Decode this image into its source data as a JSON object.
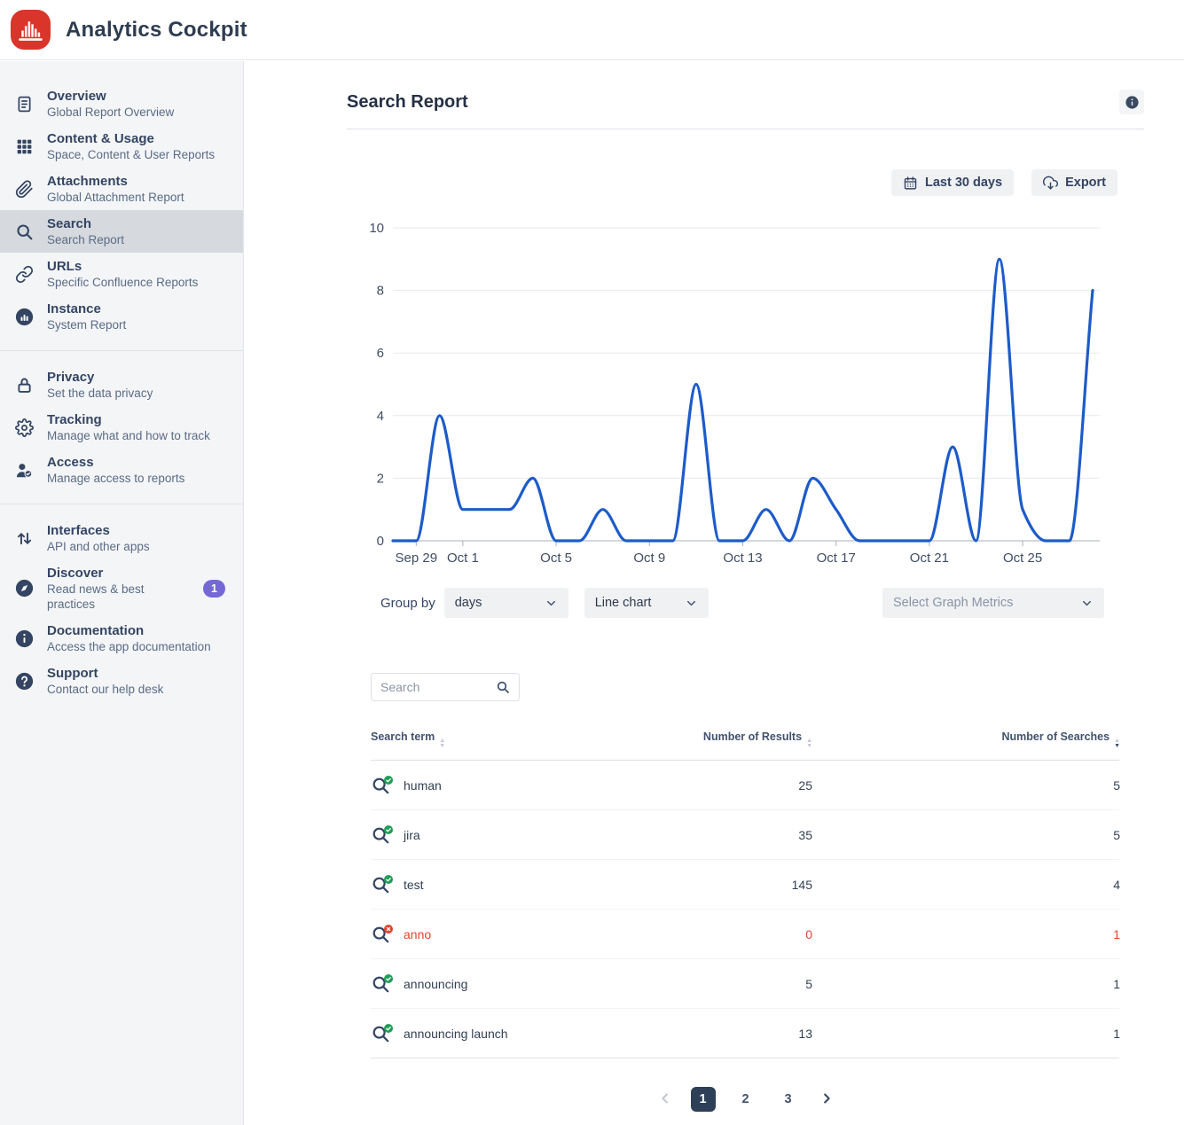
{
  "app": {
    "title": "Analytics Cockpit",
    "logo": "red-histogram"
  },
  "sidebar": {
    "groups": [
      {
        "items": [
          {
            "title": "Overview",
            "subtitle": "Global Report Overview",
            "icon": "document",
            "selected": false
          },
          {
            "title": "Content & Usage",
            "subtitle": "Space, Content & User Reports",
            "icon": "grid",
            "selected": false
          },
          {
            "title": "Attachments",
            "subtitle": "Global Attachment Report",
            "icon": "paperclip",
            "selected": false
          },
          {
            "title": "Search",
            "subtitle": "Search Report",
            "icon": "search",
            "selected": true
          },
          {
            "title": "URLs",
            "subtitle": "Specific Confluence Reports",
            "icon": "link",
            "selected": false
          },
          {
            "title": "Instance",
            "subtitle": "System Report",
            "icon": "instance",
            "selected": false
          }
        ]
      },
      {
        "items": [
          {
            "title": "Privacy",
            "subtitle": "Set the data privacy",
            "icon": "lock",
            "selected": false
          },
          {
            "title": "Tracking",
            "subtitle": "Manage what and how to track",
            "icon": "gear",
            "selected": false
          },
          {
            "title": "Access",
            "subtitle": "Manage access to reports",
            "icon": "user-check",
            "selected": false
          }
        ]
      },
      {
        "items": [
          {
            "title": "Interfaces",
            "subtitle": "API and other apps",
            "icon": "arrows-up-down",
            "selected": false
          },
          {
            "title": "Discover",
            "subtitle": "Read news & best practices",
            "icon": "compass",
            "selected": false,
            "badge": "1"
          },
          {
            "title": "Documentation",
            "subtitle": "Access the app documentation",
            "icon": "info-circle",
            "selected": false
          },
          {
            "title": "Support",
            "subtitle": "Contact our help desk",
            "icon": "question-circle",
            "selected": false
          }
        ]
      }
    ]
  },
  "main": {
    "title": "Search Report",
    "toolbar": {
      "date_range": "Last 30 days",
      "export": "Export"
    },
    "controls": {
      "group_by_label": "Group by",
      "group_by_value": "days",
      "chart_type_value": "Line chart",
      "metrics_placeholder": "Select Graph Metrics"
    },
    "search": {
      "placeholder": "Search"
    },
    "table": {
      "columns": [
        {
          "label": "Search term",
          "sort": "none",
          "align": "left"
        },
        {
          "label": "Number of Results",
          "sort": "none",
          "align": "right"
        },
        {
          "label": "Number of Searches",
          "sort": "desc",
          "align": "right"
        }
      ],
      "rows": [
        {
          "term": "human",
          "results": "25",
          "searches": "5",
          "status": "ok"
        },
        {
          "term": "jira",
          "results": "35",
          "searches": "5",
          "status": "ok"
        },
        {
          "term": "test",
          "results": "145",
          "searches": "4",
          "status": "ok"
        },
        {
          "term": "anno",
          "results": "0",
          "searches": "1",
          "status": "error"
        },
        {
          "term": "announcing",
          "results": "5",
          "searches": "1",
          "status": "ok"
        },
        {
          "term": "announcing launch",
          "results": "13",
          "searches": "1",
          "status": "ok"
        }
      ]
    },
    "pagination": {
      "pages": [
        "1",
        "2",
        "3"
      ],
      "active": "1"
    }
  },
  "chart_data": {
    "type": "line",
    "title": "",
    "xlabel": "",
    "ylabel": "",
    "x": [
      "Sep 28",
      "Sep 29",
      "Sep 30",
      "Oct 1",
      "Oct 2",
      "Oct 3",
      "Oct 4",
      "Oct 5",
      "Oct 6",
      "Oct 7",
      "Oct 8",
      "Oct 9",
      "Oct 10",
      "Oct 11",
      "Oct 12",
      "Oct 13",
      "Oct 14",
      "Oct 15",
      "Oct 16",
      "Oct 17",
      "Oct 18",
      "Oct 19",
      "Oct 20",
      "Oct 21",
      "Oct 22",
      "Oct 23",
      "Oct 24",
      "Oct 25",
      "Oct 26",
      "Oct 27",
      "Oct 28"
    ],
    "values": [
      0,
      0,
      4,
      1,
      1,
      1,
      2,
      0,
      0,
      1,
      0,
      0,
      0,
      5,
      0,
      0,
      1,
      0,
      2,
      1,
      0,
      0,
      0,
      0,
      3,
      0,
      9,
      1,
      0,
      0,
      8
    ],
    "ylim": [
      0,
      10
    ],
    "y_ticks": [
      0,
      2,
      4,
      6,
      8,
      10
    ],
    "x_tick_indices": [
      1,
      3,
      7,
      11,
      15,
      19,
      23,
      27
    ],
    "x_tick_labels": [
      "Sep 29",
      "Oct 1",
      "Oct 5",
      "Oct 9",
      "Oct 13",
      "Oct 17",
      "Oct 21",
      "Oct 25"
    ],
    "grid": "on",
    "legend": "none",
    "line_color": "#1d5bc9",
    "smoothing": "monotone"
  },
  "colors": {
    "accent_blue": "#1d5bc9",
    "brand_red": "#d9352b",
    "navy": "#344563",
    "error_red": "#e2432f",
    "success_green": "#1e9e55",
    "badge_purple": "#7568d6",
    "sidebar_bg": "#f4f5f7",
    "selected_bg": "#d6dade",
    "button_bg": "#f0f1f3",
    "page_active_bg": "#2e4057"
  }
}
